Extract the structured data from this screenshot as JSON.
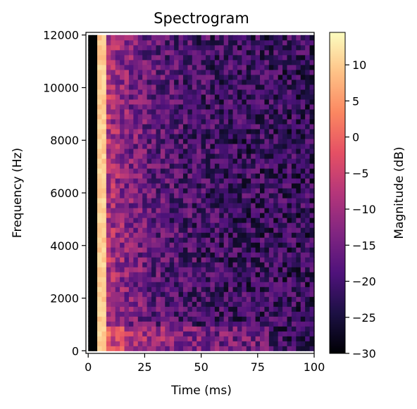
{
  "chart_data": {
    "type": "heatmap",
    "title": "Spectrogram",
    "xlabel": "Time (ms)",
    "ylabel": "Frequency (Hz)",
    "xlim": [
      -1,
      100
    ],
    "ylim": [
      -100,
      12100
    ],
    "x_ticks": [
      0,
      25,
      50,
      75,
      100
    ],
    "x_tick_labels": [
      "0",
      "25",
      "50",
      "75",
      "100"
    ],
    "y_ticks": [
      0,
      2000,
      4000,
      6000,
      8000,
      10000,
      12000
    ],
    "y_tick_labels": [
      "0",
      "2000",
      "4000",
      "6000",
      "8000",
      "10000",
      "12000"
    ],
    "colorbar": {
      "label": "Magnitude (dB)",
      "colormap": "magma",
      "range": [
        -30,
        14.5
      ],
      "ticks": [
        -30,
        -25,
        -20,
        -15,
        -10,
        -5,
        0,
        5,
        10
      ],
      "tick_labels": [
        "−30",
        "−25",
        "−20",
        "−15",
        "−10",
        "−5",
        "0",
        "5",
        "10"
      ]
    },
    "time_bins": 50,
    "frequency_bins": 64,
    "time_bin_width_ms": 2,
    "frequency_bin_width_hz": 187.5,
    "data_description_values": {
      "silent_columns_ms": [
        0,
        4
      ],
      "silent_level_db": -30,
      "onset_peak_ms": [
        4,
        8
      ],
      "onset_peak_level_db": 10,
      "decay_floor_db": -22,
      "low_frequency_band_hz": [
        0,
        900
      ],
      "low_frequency_boost_db": 6
    }
  }
}
